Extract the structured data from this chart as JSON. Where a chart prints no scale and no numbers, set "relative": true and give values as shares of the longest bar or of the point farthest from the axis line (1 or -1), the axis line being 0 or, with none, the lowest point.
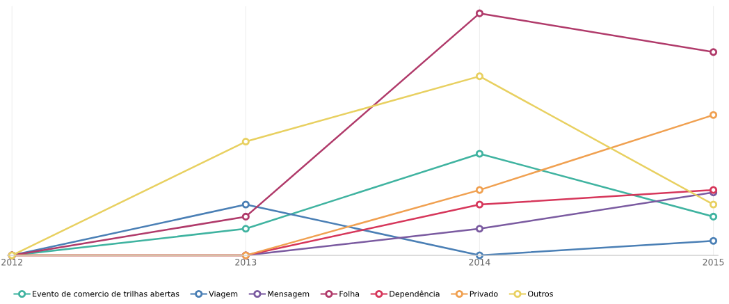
{
  "chart_data": {
    "type": "line",
    "relative": true,
    "categories": [
      "2012",
      "2013",
      "2014",
      "2015"
    ],
    "series": [
      {
        "name": "Evento de comercio de trilhas abertas",
        "color": "#3fb3a0",
        "values": [
          0,
          0.11,
          0.42,
          0.16
        ]
      },
      {
        "name": "Viagem",
        "color": "#4a7fb5",
        "values": [
          0,
          0.21,
          0,
          0.06
        ]
      },
      {
        "name": "Mensagem",
        "color": "#7a5aa0",
        "values": [
          0,
          0,
          0.11,
          0.26
        ]
      },
      {
        "name": "Folha",
        "color": "#b03a6a",
        "values": [
          0,
          0.16,
          1,
          0.84
        ]
      },
      {
        "name": "Dependência",
        "color": "#d6365a",
        "values": [
          0,
          0,
          0.21,
          0.27
        ]
      },
      {
        "name": "Privado",
        "color": "#f0a050",
        "values": [
          0,
          0,
          0.27,
          0.58
        ]
      },
      {
        "name": "Outros",
        "color": "#e8d060",
        "values": [
          0,
          0.47,
          0.74,
          0.21
        ]
      }
    ],
    "legend": "bottom",
    "grid": true,
    "marker": "circle",
    "line_style": "solid"
  }
}
